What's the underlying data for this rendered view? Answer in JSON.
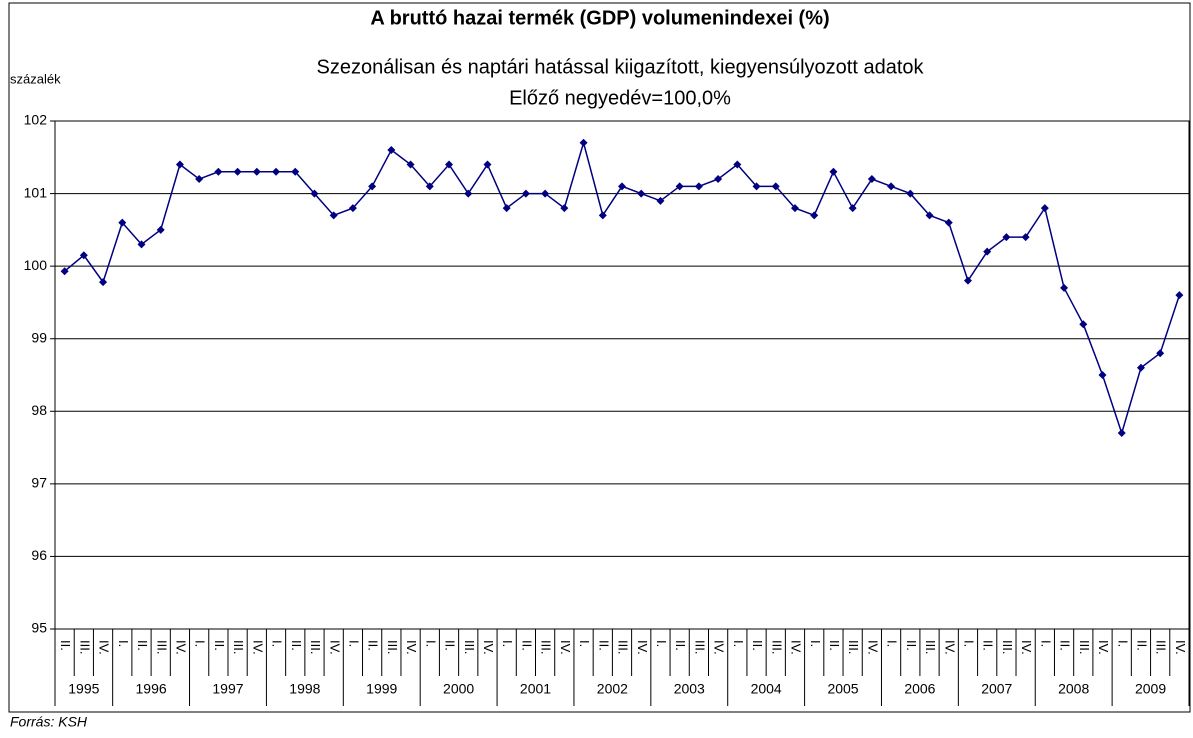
{
  "chart_data": {
    "type": "line",
    "title": "A bruttó hazai termék (GDP) volumenindexei (%)",
    "subtitle": [
      "Szezonálisan és naptári hatással kiigazított, kiegyensúlyozott adatok",
      "Előző negyedév=100,0%"
    ],
    "y_label": "százalék",
    "source": "Forrás: KSH",
    "categories": [
      "II.",
      "III.",
      "IV.",
      "I.",
      "II.",
      "III.",
      "IV.",
      "I.",
      "II.",
      "III.",
      "IV.",
      "I.",
      "II.",
      "III.",
      "IV.",
      "I.",
      "II.",
      "III.",
      "IV.",
      "I.",
      "II.",
      "III.",
      "IV.",
      "I.",
      "II.",
      "III.",
      "IV.",
      "I.",
      "II.",
      "III.",
      "IV.",
      "I.",
      "II.",
      "III.",
      "IV.",
      "I.",
      "II.",
      "III.",
      "IV.",
      "I.",
      "II.",
      "III.",
      "IV.",
      "I.",
      "II.",
      "III.",
      "IV.",
      "I.",
      "II.",
      "III.",
      "IV.",
      "I.",
      "II.",
      "III.",
      "IV.",
      "I.",
      "II.",
      "III.",
      "IV."
    ],
    "category_groups": [
      "1995",
      "1996",
      "1997",
      "1998",
      "1999",
      "2000",
      "2001",
      "2002",
      "2003",
      "2004",
      "2005",
      "2006",
      "2007",
      "2008",
      "2009"
    ],
    "series": [
      {
        "name": "GDP",
        "color": "#000080",
        "values": [
          99.93,
          100.15,
          99.78,
          100.6,
          100.3,
          100.5,
          101.4,
          101.2,
          101.3,
          101.3,
          101.3,
          101.3,
          101.3,
          101.0,
          100.7,
          100.8,
          101.1,
          101.6,
          101.4,
          101.1,
          101.4,
          101.0,
          101.4,
          100.8,
          101.0,
          101.0,
          100.8,
          101.7,
          100.7,
          101.1,
          101.0,
          100.9,
          101.1,
          101.1,
          101.2,
          101.4,
          101.1,
          101.1,
          100.8,
          100.7,
          101.3,
          100.8,
          101.2,
          101.1,
          101.0,
          100.7,
          100.6,
          99.8,
          100.2,
          100.4,
          100.4,
          100.8,
          99.7,
          99.2,
          98.5,
          97.7,
          98.6,
          98.8,
          99.6
        ]
      }
    ],
    "ylim": [
      95,
      102
    ],
    "yticks": [
      95,
      96,
      97,
      98,
      99,
      100,
      101,
      102
    ],
    "grid": true
  }
}
